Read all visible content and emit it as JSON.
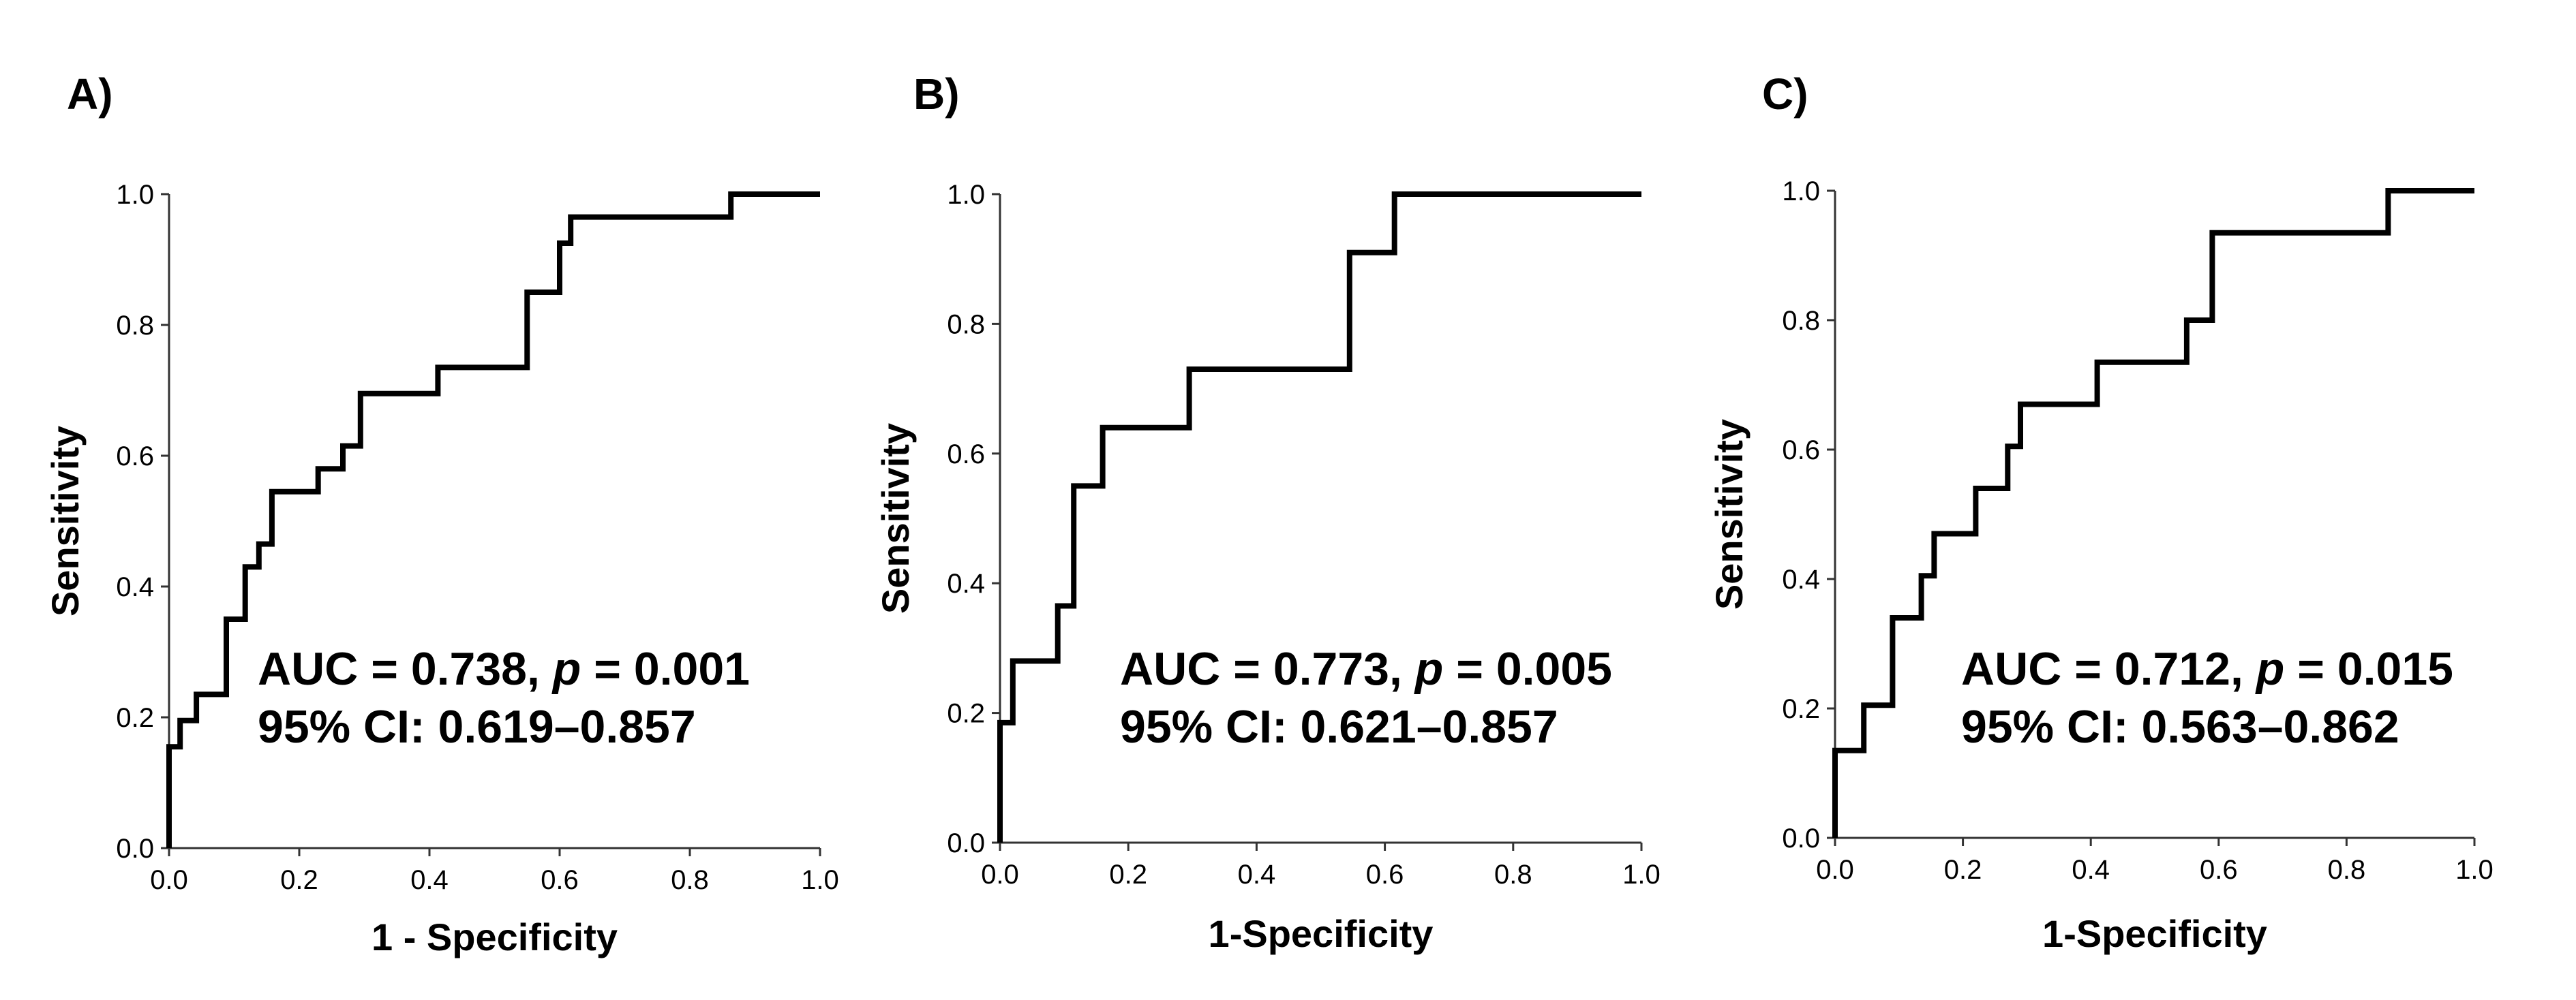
{
  "chart_data": [
    {
      "type": "line",
      "panel_label": "A)",
      "xlabel": "1 - Specificity",
      "ylabel": "Sensitivity",
      "xlim": [
        0,
        1
      ],
      "ylim": [
        0,
        1
      ],
      "xticks": [
        "0.0",
        "0.2",
        "0.4",
        "0.6",
        "0.8",
        "1.0"
      ],
      "yticks": [
        "0.0",
        "0.2",
        "0.4",
        "0.6",
        "0.8",
        "1.0"
      ],
      "auc_line": {
        "pre": "AUC = 0.738, ",
        "p": "p",
        "post": " = 0.001"
      },
      "ci_line": "95% CI: 0.619–0.857",
      "series": [
        {
          "name": "ROC",
          "x": [
            0,
            0,
            0.017,
            0.017,
            0.042,
            0.042,
            0.088,
            0.088,
            0.117,
            0.117,
            0.138,
            0.138,
            0.158,
            0.158,
            0.229,
            0.229,
            0.267,
            0.267,
            0.294,
            0.294,
            0.413,
            0.413,
            0.55,
            0.55,
            0.6,
            0.6,
            0.617,
            0.617,
            0.863,
            0.863,
            1.0
          ],
          "y": [
            0,
            0.155,
            0.155,
            0.195,
            0.195,
            0.235,
            0.235,
            0.35,
            0.35,
            0.43,
            0.43,
            0.465,
            0.465,
            0.545,
            0.545,
            0.58,
            0.58,
            0.615,
            0.615,
            0.695,
            0.695,
            0.735,
            0.735,
            0.85,
            0.85,
            0.925,
            0.925,
            0.965,
            0.965,
            1.0,
            1.0
          ]
        }
      ]
    },
    {
      "type": "line",
      "panel_label": "B)",
      "xlabel": "1-Specificity",
      "ylabel": "Sensitivity",
      "xlim": [
        0,
        1
      ],
      "ylim": [
        0,
        1
      ],
      "xticks": [
        "0.0",
        "0.2",
        "0.4",
        "0.6",
        "0.8",
        "1.0"
      ],
      "yticks": [
        "0.0",
        "0.2",
        "0.4",
        "0.6",
        "0.8",
        "1.0"
      ],
      "auc_line": {
        "pre": "AUC = 0.773, ",
        "p": "p",
        "post": " = 0.005"
      },
      "ci_line": "95% CI: 0.621–0.857",
      "series": [
        {
          "name": "ROC",
          "x": [
            0,
            0,
            0.02,
            0.02,
            0.09,
            0.09,
            0.115,
            0.115,
            0.16,
            0.16,
            0.295,
            0.295,
            0.545,
            0.545,
            0.615,
            0.615,
            1.0
          ],
          "y": [
            0,
            0.185,
            0.185,
            0.28,
            0.28,
            0.365,
            0.365,
            0.55,
            0.55,
            0.64,
            0.64,
            0.73,
            0.73,
            0.91,
            0.91,
            1.0,
            1.0
          ]
        }
      ]
    },
    {
      "type": "line",
      "panel_label": "C)",
      "xlabel": "1-Specificity",
      "ylabel": "Sensitivity",
      "xlim": [
        0,
        1
      ],
      "ylim": [
        0,
        1
      ],
      "xticks": [
        "0.0",
        "0.2",
        "0.4",
        "0.6",
        "0.8",
        "1.0"
      ],
      "yticks": [
        "0.0",
        "0.2",
        "0.4",
        "0.6",
        "0.8",
        "1.0"
      ],
      "auc_line": {
        "pre": "AUC = 0.712, ",
        "p": "p",
        "post": " = 0.015"
      },
      "ci_line": "95% CI: 0.563–0.862",
      "series": [
        {
          "name": "ROC",
          "x": [
            0,
            0,
            0.045,
            0.045,
            0.09,
            0.09,
            0.135,
            0.135,
            0.155,
            0.155,
            0.22,
            0.22,
            0.27,
            0.27,
            0.29,
            0.29,
            0.41,
            0.41,
            0.55,
            0.55,
            0.59,
            0.59,
            0.865,
            0.865,
            1.0
          ],
          "y": [
            0,
            0.135,
            0.135,
            0.205,
            0.205,
            0.34,
            0.34,
            0.405,
            0.405,
            0.47,
            0.47,
            0.54,
            0.54,
            0.605,
            0.605,
            0.67,
            0.67,
            0.735,
            0.735,
            0.8,
            0.8,
            0.935,
            0.935,
            1.0,
            1.0
          ]
        }
      ]
    }
  ]
}
